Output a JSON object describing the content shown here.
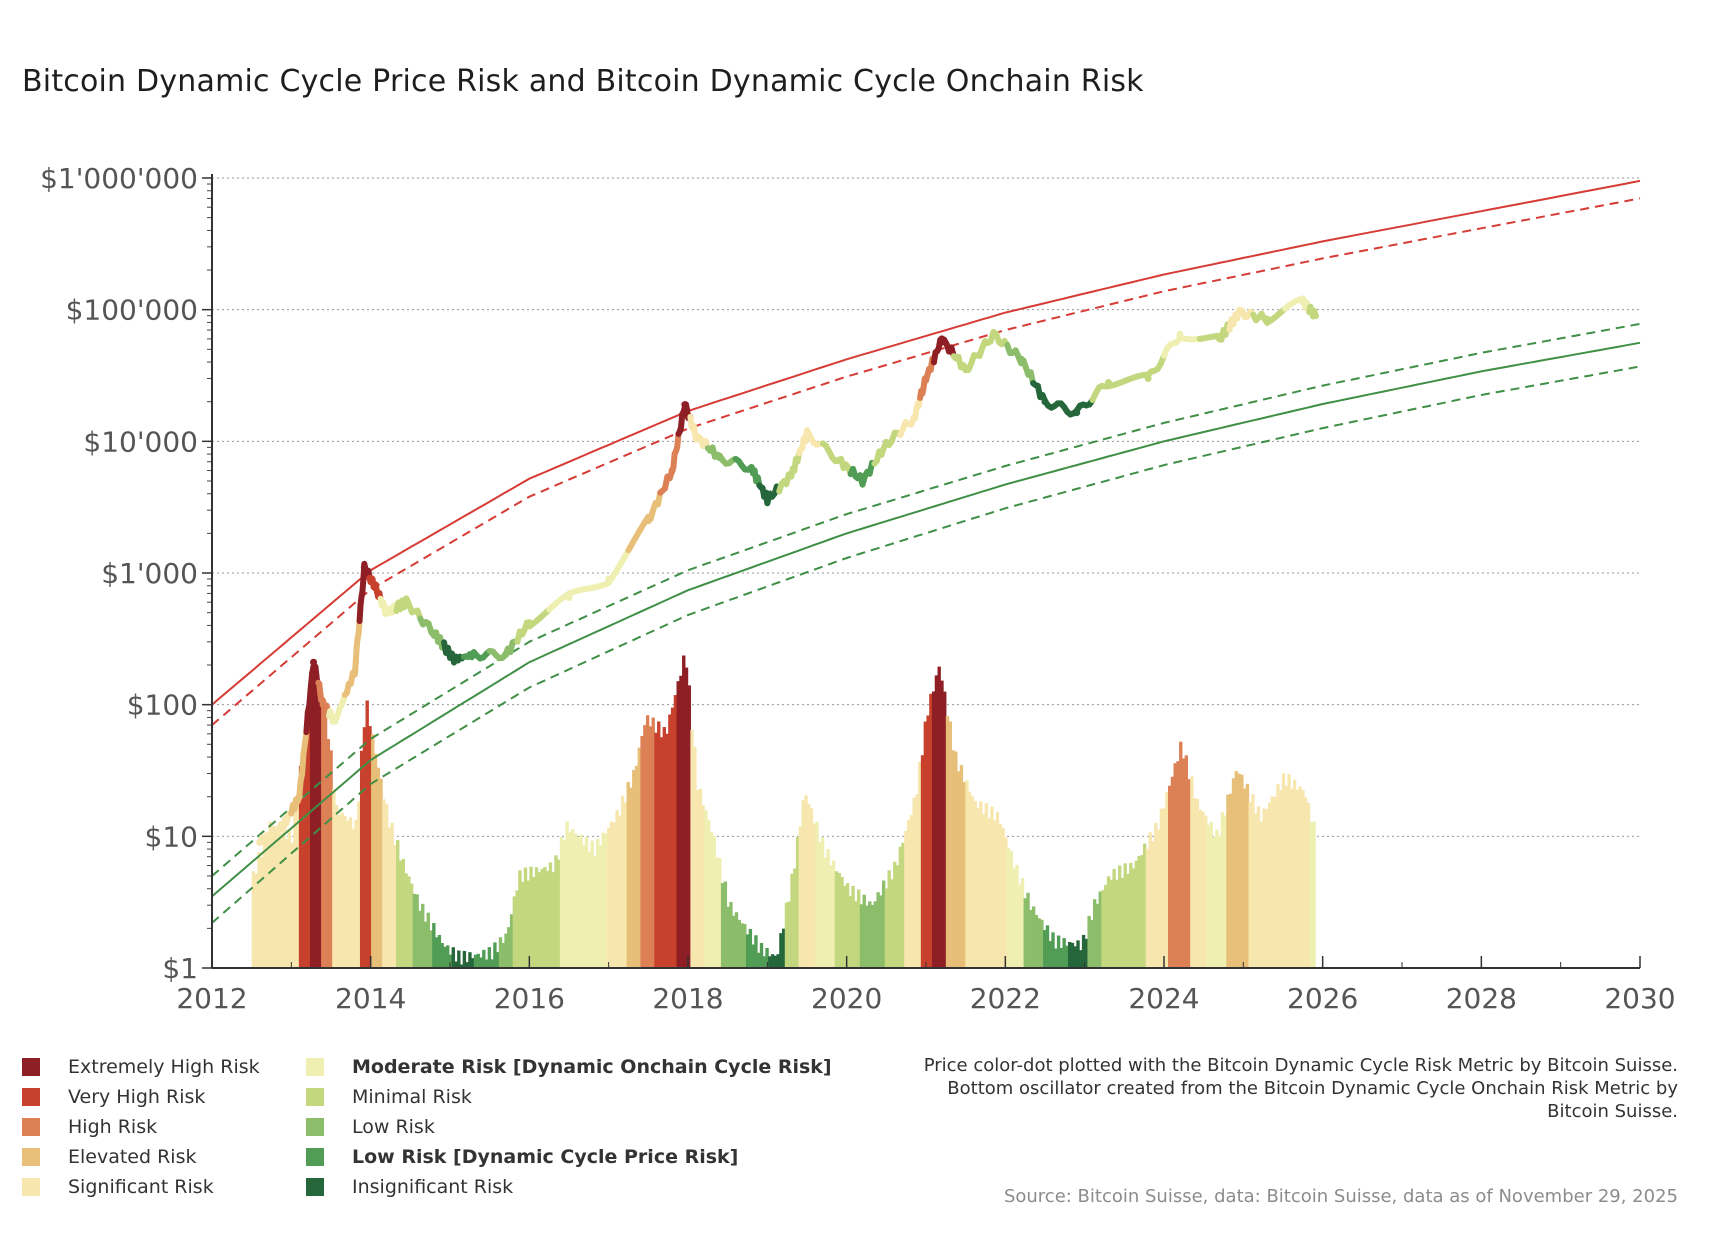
{
  "title": "Bitcoin Dynamic Cycle Price Risk and Bitcoin Dynamic Cycle Onchain Risk",
  "chart_data": {
    "type": "line",
    "title": "Bitcoin Dynamic Cycle Price Risk and Bitcoin Dynamic Cycle Onchain Risk",
    "x_axis": {
      "label": "",
      "range": [
        2012,
        2030
      ],
      "ticks": [
        2012,
        2014,
        2016,
        2018,
        2020,
        2022,
        2024,
        2026,
        2028,
        2030
      ]
    },
    "y_axis": {
      "label": "",
      "scale": "log",
      "range": [
        1,
        1000000
      ],
      "ticks": [
        {
          "value": 1,
          "label": "$1"
        },
        {
          "value": 10,
          "label": "$10"
        },
        {
          "value": 100,
          "label": "$100"
        },
        {
          "value": 1000,
          "label": "$1'000"
        },
        {
          "value": 10000,
          "label": "$10'000"
        },
        {
          "value": 100000,
          "label": "$100'000"
        },
        {
          "value": 1000000,
          "label": "$1'000'000"
        }
      ]
    },
    "grid": "horizontal dotted",
    "bands": [
      {
        "name": "upper band (solid)",
        "color": "#d63c35",
        "style": "solid",
        "points": [
          [
            2012,
            100
          ],
          [
            2014,
            1050
          ],
          [
            2016,
            5200
          ],
          [
            2018,
            17000
          ],
          [
            2020,
            42000
          ],
          [
            2022,
            95000
          ],
          [
            2024,
            185000
          ],
          [
            2026,
            330000
          ],
          [
            2028,
            560000
          ],
          [
            2030,
            950000
          ]
        ]
      },
      {
        "name": "upper band (dashed)",
        "color": "#d63c35",
        "style": "dashed",
        "points": [
          [
            2012,
            70
          ],
          [
            2014,
            750
          ],
          [
            2016,
            3800
          ],
          [
            2018,
            12500
          ],
          [
            2020,
            31000
          ],
          [
            2022,
            70000
          ],
          [
            2024,
            138000
          ],
          [
            2026,
            245000
          ],
          [
            2028,
            415000
          ],
          [
            2030,
            700000
          ]
        ]
      },
      {
        "name": "lower band upper (dashed)",
        "color": "#3f8f46",
        "style": "dashed",
        "points": [
          [
            2012,
            5
          ],
          [
            2014,
            55
          ],
          [
            2016,
            300
          ],
          [
            2018,
            1050
          ],
          [
            2020,
            2800
          ],
          [
            2022,
            6500
          ],
          [
            2024,
            13800
          ],
          [
            2026,
            26500
          ],
          [
            2028,
            47000
          ],
          [
            2030,
            78000
          ]
        ]
      },
      {
        "name": "lower band (solid)",
        "color": "#3f8f46",
        "style": "solid",
        "points": [
          [
            2012,
            3.5
          ],
          [
            2014,
            38
          ],
          [
            2016,
            210
          ],
          [
            2018,
            740
          ],
          [
            2020,
            2000
          ],
          [
            2022,
            4700
          ],
          [
            2024,
            10000
          ],
          [
            2026,
            19200
          ],
          [
            2028,
            34000
          ],
          [
            2030,
            56000
          ]
        ]
      },
      {
        "name": "lower band lower (dashed)",
        "color": "#3f8f46",
        "style": "dashed",
        "points": [
          [
            2012,
            2.2
          ],
          [
            2014,
            25
          ],
          [
            2016,
            135
          ],
          [
            2018,
            480
          ],
          [
            2020,
            1300
          ],
          [
            2022,
            3100
          ],
          [
            2024,
            6600
          ],
          [
            2026,
            12600
          ],
          [
            2028,
            22500
          ],
          [
            2030,
            37000
          ]
        ]
      }
    ],
    "price_series": [
      {
        "x": 2012.6,
        "y": 9,
        "risk": 5
      },
      {
        "x": 2012.9,
        "y": 12,
        "risk": 5
      },
      {
        "x": 2013.1,
        "y": 20,
        "risk": 4
      },
      {
        "x": 2013.28,
        "y": 210,
        "risk": 1
      },
      {
        "x": 2013.4,
        "y": 100,
        "risk": 3
      },
      {
        "x": 2013.55,
        "y": 75,
        "risk": 6
      },
      {
        "x": 2013.8,
        "y": 180,
        "risk": 4
      },
      {
        "x": 2013.92,
        "y": 1100,
        "risk": 1
      },
      {
        "x": 2014.05,
        "y": 800,
        "risk": 2
      },
      {
        "x": 2014.2,
        "y": 500,
        "risk": 6
      },
      {
        "x": 2014.45,
        "y": 600,
        "risk": 7
      },
      {
        "x": 2014.8,
        "y": 350,
        "risk": 8
      },
      {
        "x": 2015.05,
        "y": 220,
        "risk": 10
      },
      {
        "x": 2015.3,
        "y": 240,
        "risk": 9
      },
      {
        "x": 2015.7,
        "y": 240,
        "risk": 8
      },
      {
        "x": 2016.0,
        "y": 420,
        "risk": 7
      },
      {
        "x": 2016.5,
        "y": 650,
        "risk": 6
      },
      {
        "x": 2017.0,
        "y": 900,
        "risk": 6
      },
      {
        "x": 2017.5,
        "y": 2500,
        "risk": 4
      },
      {
        "x": 2017.8,
        "y": 6000,
        "risk": 3
      },
      {
        "x": 2017.96,
        "y": 19000,
        "risk": 1
      },
      {
        "x": 2018.1,
        "y": 11000,
        "risk": 5
      },
      {
        "x": 2018.4,
        "y": 7500,
        "risk": 8
      },
      {
        "x": 2018.8,
        "y": 6300,
        "risk": 9
      },
      {
        "x": 2019.0,
        "y": 3600,
        "risk": 10
      },
      {
        "x": 2019.3,
        "y": 5500,
        "risk": 7
      },
      {
        "x": 2019.5,
        "y": 11500,
        "risk": 5
      },
      {
        "x": 2019.9,
        "y": 7200,
        "risk": 7
      },
      {
        "x": 2020.2,
        "y": 5000,
        "risk": 9
      },
      {
        "x": 2020.5,
        "y": 9500,
        "risk": 7
      },
      {
        "x": 2020.85,
        "y": 15000,
        "risk": 5
      },
      {
        "x": 2021.0,
        "y": 30000,
        "risk": 3
      },
      {
        "x": 2021.2,
        "y": 60000,
        "risk": 1
      },
      {
        "x": 2021.5,
        "y": 35000,
        "risk": 7
      },
      {
        "x": 2021.85,
        "y": 65000,
        "risk": 7
      },
      {
        "x": 2022.2,
        "y": 42000,
        "risk": 8
      },
      {
        "x": 2022.5,
        "y": 20000,
        "risk": 10
      },
      {
        "x": 2022.9,
        "y": 16500,
        "risk": 10
      },
      {
        "x": 2023.3,
        "y": 28000,
        "risk": 7
      },
      {
        "x": 2023.8,
        "y": 30000,
        "risk": 7
      },
      {
        "x": 2024.2,
        "y": 65000,
        "risk": 6
      },
      {
        "x": 2024.7,
        "y": 60000,
        "risk": 7
      },
      {
        "x": 2024.95,
        "y": 95000,
        "risk": 5
      },
      {
        "x": 2025.3,
        "y": 85000,
        "risk": 7
      },
      {
        "x": 2025.75,
        "y": 115000,
        "risk": 6
      },
      {
        "x": 2025.91,
        "y": 90000,
        "risk": 7
      }
    ],
    "oscillator": [
      {
        "x": 2012.5,
        "y": 5,
        "risk": 5
      },
      {
        "x": 2012.7,
        "y": 12,
        "risk": 5
      },
      {
        "x": 2013.0,
        "y": 10,
        "risk": 5
      },
      {
        "x": 2013.15,
        "y": 60,
        "risk": 2
      },
      {
        "x": 2013.3,
        "y": 180,
        "risk": 1
      },
      {
        "x": 2013.45,
        "y": 60,
        "risk": 3
      },
      {
        "x": 2013.55,
        "y": 16,
        "risk": 5
      },
      {
        "x": 2013.8,
        "y": 12,
        "risk": 5
      },
      {
        "x": 2013.92,
        "y": 110,
        "risk": 2
      },
      {
        "x": 2014.05,
        "y": 40,
        "risk": 4
      },
      {
        "x": 2014.2,
        "y": 14,
        "risk": 5
      },
      {
        "x": 2014.4,
        "y": 6,
        "risk": 7
      },
      {
        "x": 2014.6,
        "y": 3,
        "risk": 8
      },
      {
        "x": 2014.9,
        "y": 1.5,
        "risk": 9
      },
      {
        "x": 2015.1,
        "y": 1.2,
        "risk": 10
      },
      {
        "x": 2015.5,
        "y": 1.3,
        "risk": 9
      },
      {
        "x": 2015.7,
        "y": 1.8,
        "risk": 8
      },
      {
        "x": 2015.85,
        "y": 5,
        "risk": 7
      },
      {
        "x": 2016.3,
        "y": 6,
        "risk": 7
      },
      {
        "x": 2016.45,
        "y": 12,
        "risk": 6
      },
      {
        "x": 2016.8,
        "y": 8,
        "risk": 6
      },
      {
        "x": 2017.1,
        "y": 15,
        "risk": 5
      },
      {
        "x": 2017.3,
        "y": 30,
        "risk": 4
      },
      {
        "x": 2017.45,
        "y": 80,
        "risk": 3
      },
      {
        "x": 2017.7,
        "y": 60,
        "risk": 2
      },
      {
        "x": 2017.95,
        "y": 250,
        "risk": 1
      },
      {
        "x": 2018.1,
        "y": 25,
        "risk": 5
      },
      {
        "x": 2018.3,
        "y": 10,
        "risk": 6
      },
      {
        "x": 2018.5,
        "y": 3,
        "risk": 8
      },
      {
        "x": 2018.9,
        "y": 1.4,
        "risk": 9
      },
      {
        "x": 2019.1,
        "y": 1.2,
        "risk": 10
      },
      {
        "x": 2019.3,
        "y": 5,
        "risk": 7
      },
      {
        "x": 2019.45,
        "y": 22,
        "risk": 5
      },
      {
        "x": 2019.7,
        "y": 8,
        "risk": 6
      },
      {
        "x": 2020.0,
        "y": 4,
        "risk": 7
      },
      {
        "x": 2020.3,
        "y": 3,
        "risk": 8
      },
      {
        "x": 2020.6,
        "y": 6,
        "risk": 7
      },
      {
        "x": 2020.85,
        "y": 20,
        "risk": 5
      },
      {
        "x": 2021.0,
        "y": 90,
        "risk": 2
      },
      {
        "x": 2021.15,
        "y": 200,
        "risk": 1
      },
      {
        "x": 2021.35,
        "y": 40,
        "risk": 4
      },
      {
        "x": 2021.6,
        "y": 18,
        "risk": 5
      },
      {
        "x": 2021.9,
        "y": 14,
        "risk": 5
      },
      {
        "x": 2022.1,
        "y": 6,
        "risk": 6
      },
      {
        "x": 2022.3,
        "y": 3,
        "risk": 8
      },
      {
        "x": 2022.6,
        "y": 1.6,
        "risk": 9
      },
      {
        "x": 2022.95,
        "y": 1.5,
        "risk": 10
      },
      {
        "x": 2023.1,
        "y": 3,
        "risk": 8
      },
      {
        "x": 2023.3,
        "y": 5,
        "risk": 7
      },
      {
        "x": 2023.6,
        "y": 6,
        "risk": 7
      },
      {
        "x": 2023.9,
        "y": 12,
        "risk": 5
      },
      {
        "x": 2024.2,
        "y": 50,
        "risk": 3
      },
      {
        "x": 2024.4,
        "y": 18,
        "risk": 5
      },
      {
        "x": 2024.65,
        "y": 10,
        "risk": 6
      },
      {
        "x": 2024.9,
        "y": 33,
        "risk": 4
      },
      {
        "x": 2025.2,
        "y": 14,
        "risk": 5
      },
      {
        "x": 2025.5,
        "y": 28,
        "risk": 5
      },
      {
        "x": 2025.75,
        "y": 22,
        "risk": 5
      },
      {
        "x": 2025.9,
        "y": 10,
        "risk": 6
      }
    ]
  },
  "risk_colors": [
    "",
    "#8e1f25",
    "#c7412d",
    "#dc8055",
    "#e7bf78",
    "#f7e7ae",
    "#eeefb1",
    "#c3d87e",
    "#8cbd6a",
    "#519d55",
    "#25673a"
  ],
  "legend": {
    "col1": [
      {
        "label": "Extremely High Risk",
        "color": "#8e1f25",
        "bold": false
      },
      {
        "label": "Very High Risk",
        "color": "#c7412d",
        "bold": false
      },
      {
        "label": "High Risk",
        "color": "#dc8055",
        "bold": false
      },
      {
        "label": "Elevated Risk",
        "color": "#e7bf78",
        "bold": false
      },
      {
        "label": "Significant Risk",
        "color": "#f7e7ae",
        "bold": false
      }
    ],
    "col2": [
      {
        "label": "Moderate Risk [Dynamic Onchain Cycle Risk]",
        "color": "#eeefb1",
        "bold": true
      },
      {
        "label": "Minimal Risk",
        "color": "#c3d87e",
        "bold": false
      },
      {
        "label": "Low Risk",
        "color": "#8cbd6a",
        "bold": false
      },
      {
        "label": "Low Risk [Dynamic Cycle Price Risk]",
        "color": "#519d55",
        "bold": true
      },
      {
        "label": "Insignificant Risk",
        "color": "#25673a",
        "bold": false
      }
    ]
  },
  "note": "Price color-dot plotted with the Bitcoin Dynamic Cycle Risk Metric by Bitcoin Suisse. Bottom oscillator created from the Bitcoin Dynamic Cycle Onchain Risk Metric by Bitcoin Suisse.",
  "source": "Source: Bitcoin Suisse, data: Bitcoin Suisse, data as of November 29, 2025"
}
